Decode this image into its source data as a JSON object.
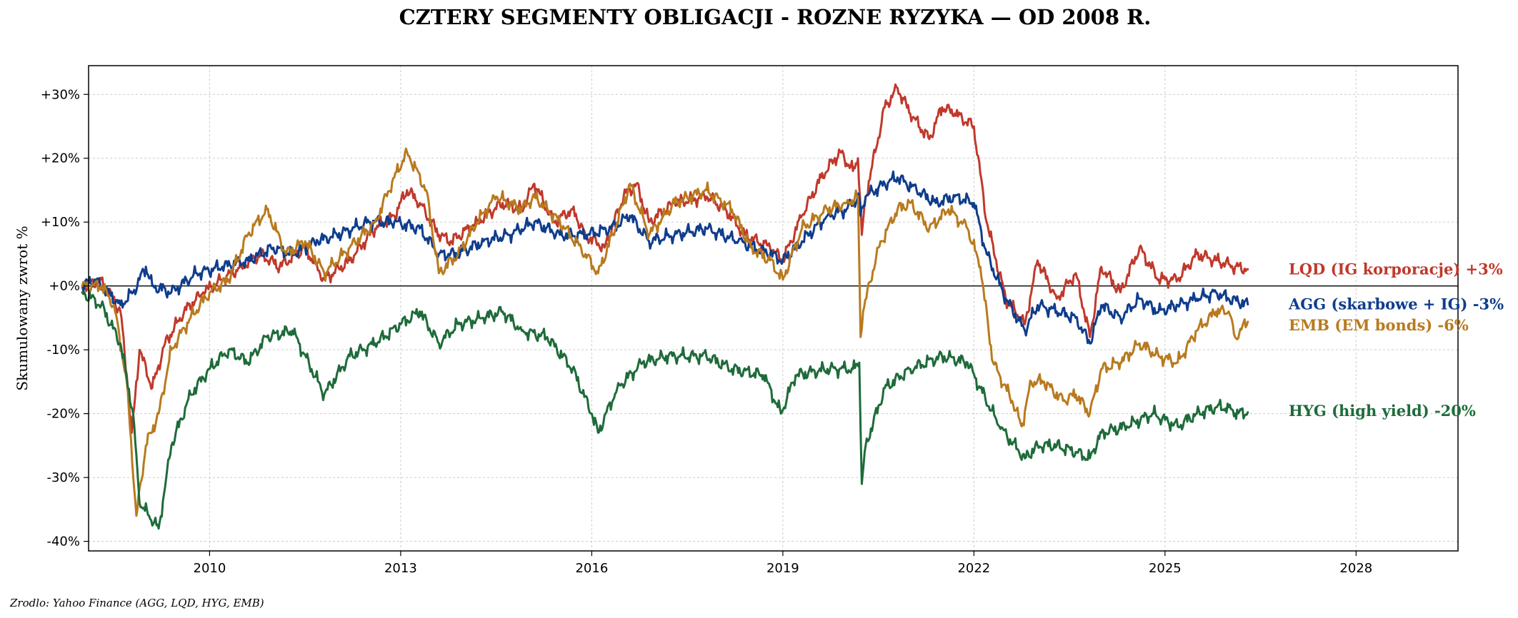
{
  "chart_data": {
    "type": "line",
    "title": "CZTERY SEGMENTY OBLIGACJI - ROZNE RYZYKA — OD 2008 R.",
    "xlabel": "",
    "ylabel": "Skumulowany zwrot %",
    "xlim": [
      2008.1,
      2029.6
    ],
    "ylim": [
      -41.5,
      34.5
    ],
    "x_ticks": [
      2010,
      2013,
      2016,
      2019,
      2022,
      2025,
      2028
    ],
    "x_tick_labels": [
      "2010",
      "2013",
      "2016",
      "2019",
      "2022",
      "2025",
      "2028"
    ],
    "y_ticks": [
      30,
      20,
      10,
      0,
      -10,
      -20,
      -30,
      -40
    ],
    "y_tick_labels": [
      "+30%",
      "+20%",
      "+10%",
      "+0%",
      "-10%",
      "-20%",
      "-30%",
      "-40%"
    ],
    "grid": true,
    "zero_line": true,
    "legend": "none",
    "series": [
      {
        "key": "LQD",
        "color": "#c0392b",
        "end_label": "LQD (IG korporacje)  +3%",
        "points": [
          [
            2008.0,
            0
          ],
          [
            2008.3,
            1
          ],
          [
            2008.6,
            -4
          ],
          [
            2008.7,
            -14
          ],
          [
            2008.78,
            -23
          ],
          [
            2008.9,
            -10
          ],
          [
            2009.1,
            -16
          ],
          [
            2009.3,
            -9
          ],
          [
            2009.6,
            -4
          ],
          [
            2009.9,
            -1
          ],
          [
            2010.2,
            1
          ],
          [
            2010.5,
            3
          ],
          [
            2010.8,
            5
          ],
          [
            2011.1,
            3
          ],
          [
            2011.5,
            6
          ],
          [
            2011.8,
            1
          ],
          [
            2012.2,
            4
          ],
          [
            2012.6,
            9
          ],
          [
            2012.9,
            11
          ],
          [
            2013.1,
            15
          ],
          [
            2013.3,
            13
          ],
          [
            2013.6,
            8
          ],
          [
            2013.8,
            7
          ],
          [
            2014.2,
            10
          ],
          [
            2014.6,
            13
          ],
          [
            2014.9,
            12
          ],
          [
            2015.1,
            16
          ],
          [
            2015.4,
            10
          ],
          [
            2015.7,
            12
          ],
          [
            2015.9,
            8
          ],
          [
            2016.2,
            6
          ],
          [
            2016.5,
            14
          ],
          [
            2016.7,
            16
          ],
          [
            2016.9,
            10
          ],
          [
            2017.3,
            13
          ],
          [
            2017.8,
            14
          ],
          [
            2018.1,
            12
          ],
          [
            2018.4,
            8
          ],
          [
            2018.8,
            6
          ],
          [
            2019.0,
            4
          ],
          [
            2019.3,
            11
          ],
          [
            2019.6,
            17
          ],
          [
            2019.9,
            21
          ],
          [
            2020.1,
            18
          ],
          [
            2020.18,
            20
          ],
          [
            2020.24,
            8
          ],
          [
            2020.3,
            14
          ],
          [
            2020.6,
            28
          ],
          [
            2020.8,
            31
          ],
          [
            2021.0,
            27
          ],
          [
            2021.3,
            23
          ],
          [
            2021.5,
            28
          ],
          [
            2021.7,
            27
          ],
          [
            2022.0,
            25
          ],
          [
            2022.2,
            10
          ],
          [
            2022.5,
            -2
          ],
          [
            2022.8,
            -6
          ],
          [
            2023.0,
            4
          ],
          [
            2023.3,
            -2
          ],
          [
            2023.6,
            2
          ],
          [
            2023.82,
            -8
          ],
          [
            2024.0,
            3
          ],
          [
            2024.3,
            -1
          ],
          [
            2024.6,
            6
          ],
          [
            2024.9,
            1
          ],
          [
            2025.2,
            1
          ],
          [
            2025.5,
            5
          ],
          [
            2025.8,
            4
          ],
          [
            2026.1,
            3
          ],
          [
            2026.3,
            2.6
          ]
        ]
      },
      {
        "key": "AGG",
        "color": "#0f3d8c",
        "end_label": "AGG (skarbowe + IG)  -3%",
        "points": [
          [
            2008.0,
            0
          ],
          [
            2008.2,
            1
          ],
          [
            2008.4,
            -1
          ],
          [
            2008.6,
            -3
          ],
          [
            2008.8,
            -1
          ],
          [
            2009.0,
            3
          ],
          [
            2009.1,
            0
          ],
          [
            2009.4,
            -1
          ],
          [
            2009.8,
            2
          ],
          [
            2010.2,
            3
          ],
          [
            2010.6,
            4
          ],
          [
            2011.0,
            6
          ],
          [
            2011.3,
            5
          ],
          [
            2011.7,
            7
          ],
          [
            2012.0,
            8
          ],
          [
            2012.5,
            10
          ],
          [
            2012.9,
            10
          ],
          [
            2013.3,
            9
          ],
          [
            2013.6,
            5
          ],
          [
            2013.9,
            5
          ],
          [
            2014.3,
            7
          ],
          [
            2014.7,
            8
          ],
          [
            2015.1,
            10
          ],
          [
            2015.5,
            8
          ],
          [
            2015.9,
            8
          ],
          [
            2016.3,
            9
          ],
          [
            2016.6,
            11
          ],
          [
            2016.9,
            7
          ],
          [
            2017.3,
            8
          ],
          [
            2017.8,
            9
          ],
          [
            2018.3,
            7
          ],
          [
            2018.8,
            5
          ],
          [
            2019.0,
            4
          ],
          [
            2019.3,
            7
          ],
          [
            2019.7,
            11
          ],
          [
            2020.0,
            12
          ],
          [
            2020.2,
            14
          ],
          [
            2020.22,
            11
          ],
          [
            2020.3,
            14
          ],
          [
            2020.6,
            16
          ],
          [
            2020.8,
            17
          ],
          [
            2021.1,
            15
          ],
          [
            2021.4,
            13
          ],
          [
            2021.7,
            14
          ],
          [
            2022.0,
            13
          ],
          [
            2022.2,
            5
          ],
          [
            2022.5,
            -2
          ],
          [
            2022.8,
            -7
          ],
          [
            2023.0,
            -3
          ],
          [
            2023.3,
            -4
          ],
          [
            2023.6,
            -5
          ],
          [
            2023.82,
            -9
          ],
          [
            2024.0,
            -3
          ],
          [
            2024.3,
            -5
          ],
          [
            2024.6,
            -2
          ],
          [
            2024.9,
            -4
          ],
          [
            2025.2,
            -3
          ],
          [
            2025.5,
            -2
          ],
          [
            2025.8,
            -1
          ],
          [
            2026.0,
            -2
          ],
          [
            2026.3,
            -2.9
          ]
        ]
      },
      {
        "key": "EMB",
        "color": "#b87a1f",
        "end_label": "EMB (EM bonds)  -6%",
        "points": [
          [
            2008.0,
            0
          ],
          [
            2008.3,
            0
          ],
          [
            2008.5,
            -3
          ],
          [
            2008.7,
            -15
          ],
          [
            2008.85,
            -36
          ],
          [
            2009.0,
            -25
          ],
          [
            2009.2,
            -20
          ],
          [
            2009.4,
            -10
          ],
          [
            2009.7,
            -5
          ],
          [
            2010.0,
            -1
          ],
          [
            2010.3,
            1
          ],
          [
            2010.6,
            8
          ],
          [
            2010.9,
            12
          ],
          [
            2011.2,
            5
          ],
          [
            2011.5,
            7
          ],
          [
            2011.8,
            2
          ],
          [
            2012.2,
            6
          ],
          [
            2012.6,
            10
          ],
          [
            2012.9,
            17
          ],
          [
            2013.1,
            21
          ],
          [
            2013.4,
            15
          ],
          [
            2013.6,
            2
          ],
          [
            2013.9,
            5
          ],
          [
            2014.2,
            10
          ],
          [
            2014.5,
            14
          ],
          [
            2014.9,
            12
          ],
          [
            2015.1,
            14
          ],
          [
            2015.5,
            10
          ],
          [
            2015.9,
            5
          ],
          [
            2016.1,
            2
          ],
          [
            2016.4,
            10
          ],
          [
            2016.6,
            16
          ],
          [
            2016.9,
            8
          ],
          [
            2017.3,
            13
          ],
          [
            2017.8,
            15
          ],
          [
            2018.2,
            12
          ],
          [
            2018.5,
            6
          ],
          [
            2018.8,
            4
          ],
          [
            2019.0,
            1
          ],
          [
            2019.3,
            9
          ],
          [
            2019.7,
            12
          ],
          [
            2020.0,
            13
          ],
          [
            2020.18,
            14
          ],
          [
            2020.22,
            -8
          ],
          [
            2020.26,
            -4
          ],
          [
            2020.5,
            6
          ],
          [
            2020.8,
            12
          ],
          [
            2021.0,
            13
          ],
          [
            2021.3,
            9
          ],
          [
            2021.6,
            12
          ],
          [
            2021.9,
            9
          ],
          [
            2022.1,
            3
          ],
          [
            2022.3,
            -12
          ],
          [
            2022.6,
            -18
          ],
          [
            2022.75,
            -22
          ],
          [
            2022.9,
            -15
          ],
          [
            2023.1,
            -15
          ],
          [
            2023.4,
            -18
          ],
          [
            2023.6,
            -17
          ],
          [
            2023.82,
            -20
          ],
          [
            2024.0,
            -13
          ],
          [
            2024.3,
            -12
          ],
          [
            2024.6,
            -9
          ],
          [
            2024.9,
            -11
          ],
          [
            2025.2,
            -12
          ],
          [
            2025.5,
            -7
          ],
          [
            2025.8,
            -4
          ],
          [
            2026.0,
            -4
          ],
          [
            2026.1,
            -8
          ],
          [
            2026.3,
            -5.6
          ]
        ]
      },
      {
        "key": "HYG",
        "color": "#1e6b3a",
        "end_label": "HYG (high yield)  -20%",
        "points": [
          [
            2008.0,
            -1
          ],
          [
            2008.3,
            -3
          ],
          [
            2008.6,
            -9
          ],
          [
            2008.8,
            -20
          ],
          [
            2008.9,
            -34
          ],
          [
            2009.05,
            -36
          ],
          [
            2009.2,
            -38
          ],
          [
            2009.4,
            -25
          ],
          [
            2009.7,
            -17
          ],
          [
            2010.0,
            -13
          ],
          [
            2010.3,
            -10
          ],
          [
            2010.6,
            -12
          ],
          [
            2010.9,
            -8
          ],
          [
            2011.3,
            -7
          ],
          [
            2011.6,
            -13
          ],
          [
            2011.8,
            -17
          ],
          [
            2012.2,
            -11
          ],
          [
            2012.6,
            -9
          ],
          [
            2013.0,
            -6
          ],
          [
            2013.3,
            -4
          ],
          [
            2013.6,
            -9
          ],
          [
            2013.9,
            -6
          ],
          [
            2014.3,
            -5
          ],
          [
            2014.6,
            -4
          ],
          [
            2014.9,
            -7
          ],
          [
            2015.3,
            -8
          ],
          [
            2015.7,
            -13
          ],
          [
            2016.0,
            -20
          ],
          [
            2016.1,
            -23
          ],
          [
            2016.4,
            -16
          ],
          [
            2016.8,
            -12
          ],
          [
            2017.2,
            -11
          ],
          [
            2017.8,
            -11
          ],
          [
            2018.2,
            -13
          ],
          [
            2018.7,
            -14
          ],
          [
            2018.97,
            -20
          ],
          [
            2019.2,
            -14
          ],
          [
            2019.7,
            -13
          ],
          [
            2020.1,
            -13
          ],
          [
            2020.2,
            -12
          ],
          [
            2020.24,
            -31
          ],
          [
            2020.3,
            -25
          ],
          [
            2020.6,
            -16
          ],
          [
            2021.0,
            -13
          ],
          [
            2021.5,
            -11
          ],
          [
            2021.9,
            -12
          ],
          [
            2022.1,
            -16
          ],
          [
            2022.4,
            -22
          ],
          [
            2022.8,
            -27
          ],
          [
            2023.0,
            -25
          ],
          [
            2023.3,
            -25
          ],
          [
            2023.6,
            -26
          ],
          [
            2023.82,
            -27
          ],
          [
            2024.0,
            -23
          ],
          [
            2024.4,
            -22
          ],
          [
            2024.8,
            -20
          ],
          [
            2025.2,
            -22
          ],
          [
            2025.5,
            -20
          ],
          [
            2025.8,
            -19
          ],
          [
            2026.0,
            -19
          ],
          [
            2026.1,
            -20
          ],
          [
            2026.3,
            -19.8
          ]
        ]
      }
    ]
  },
  "source_note": "Zrodlo: Yahoo Finance (AGG, LQD, HYG, EMB)"
}
